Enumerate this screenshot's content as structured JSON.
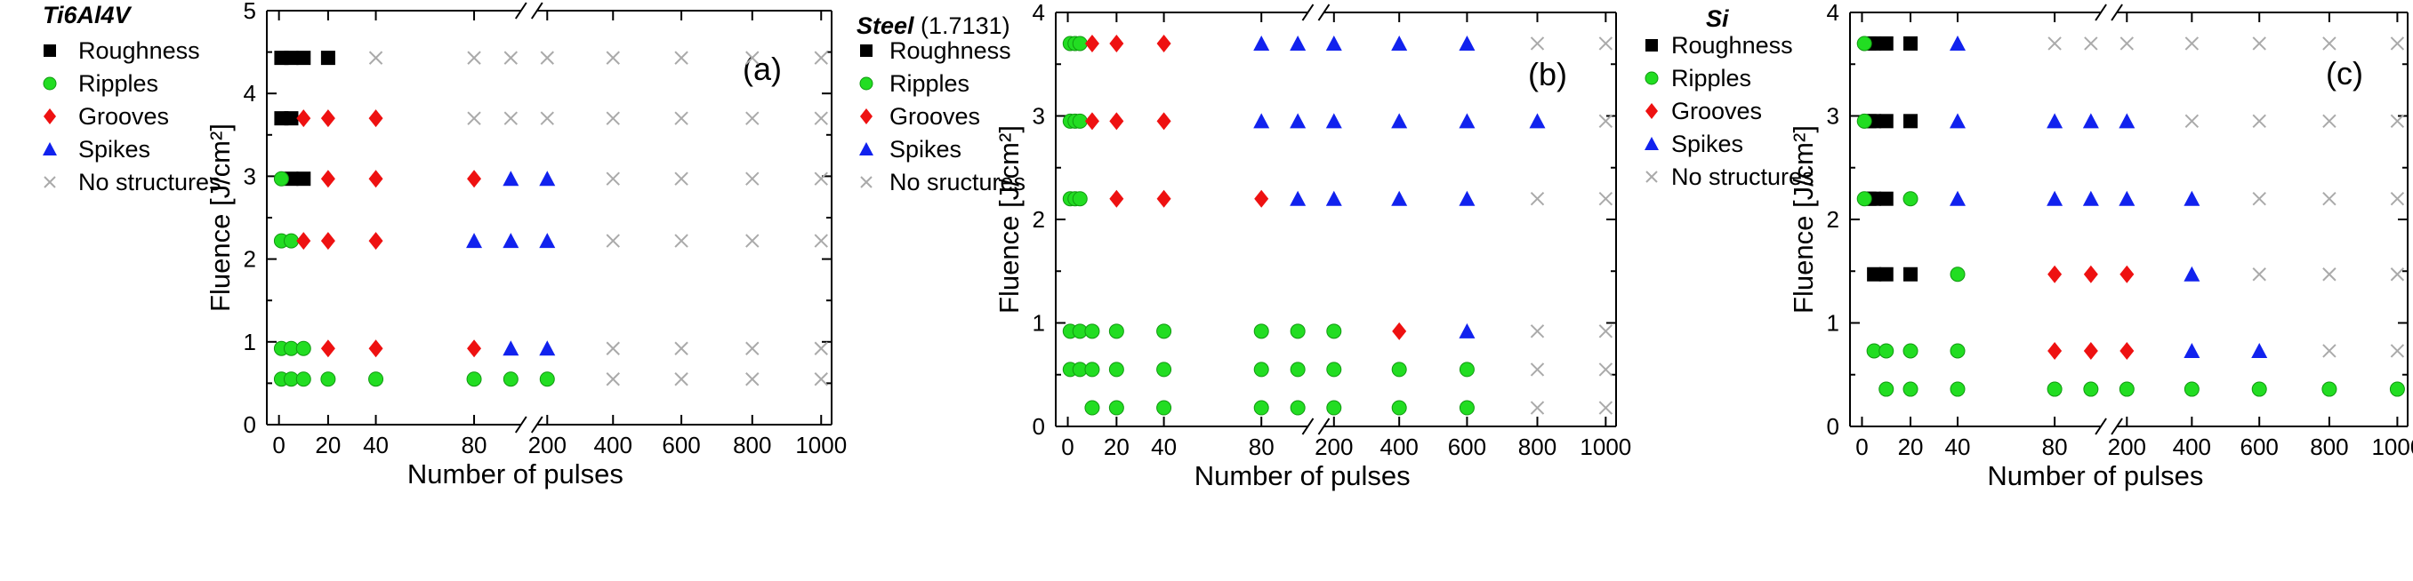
{
  "chart_data": [
    {
      "type": "scatter",
      "panel_tag": "(a)",
      "title": "Ti6Al4V",
      "title_suffix": "",
      "xlabel": "Number of pulses",
      "ylabel": "Fluence [J/cm²]",
      "ylim": [
        0,
        5
      ],
      "yticks": [
        "0",
        "1",
        "2",
        "3",
        "4",
        "5"
      ],
      "xticks": [
        "0",
        "20",
        "40",
        "80",
        "200",
        "400",
        "600",
        "800",
        "1000"
      ],
      "x_break": "between 80 and 200",
      "legend_placement": "top-left",
      "series": [
        {
          "name": "Roughness",
          "marker": "square",
          "color": "#000000",
          "points": [
            [
              1,
              4.43
            ],
            [
              5,
              4.43
            ],
            [
              10,
              4.43
            ],
            [
              20,
              4.43
            ],
            [
              1,
              3.7
            ],
            [
              5,
              3.7
            ],
            [
              10,
              2.97
            ],
            [
              5,
              2.97
            ]
          ]
        },
        {
          "name": "Ripples",
          "marker": "circle",
          "color": "#22dd22",
          "points": [
            [
              1,
              2.97
            ],
            [
              1,
              2.22
            ],
            [
              5,
              2.22
            ],
            [
              1,
              0.92
            ],
            [
              5,
              0.92
            ],
            [
              10,
              0.92
            ],
            [
              1,
              0.55
            ],
            [
              5,
              0.55
            ],
            [
              10,
              0.55
            ],
            [
              20,
              0.55
            ],
            [
              40,
              0.55
            ],
            [
              80,
              0.55
            ],
            [
              100,
              0.55
            ],
            [
              200,
              0.55
            ]
          ]
        },
        {
          "name": "Grooves",
          "marker": "diamond",
          "color": "#ee1111",
          "points": [
            [
              10,
              3.7
            ],
            [
              20,
              3.7
            ],
            [
              40,
              3.7
            ],
            [
              20,
              2.97
            ],
            [
              40,
              2.97
            ],
            [
              80,
              2.97
            ],
            [
              10,
              2.22
            ],
            [
              20,
              2.22
            ],
            [
              40,
              2.22
            ],
            [
              20,
              0.92
            ],
            [
              40,
              0.92
            ],
            [
              80,
              0.92
            ]
          ]
        },
        {
          "name": "Spikes",
          "marker": "triangle",
          "color": "#1122ee",
          "points": [
            [
              100,
              2.97
            ],
            [
              200,
              2.97
            ],
            [
              80,
              2.22
            ],
            [
              100,
              2.22
            ],
            [
              200,
              2.22
            ],
            [
              100,
              0.92
            ],
            [
              200,
              0.92
            ]
          ]
        },
        {
          "name": "No structures",
          "marker": "cross",
          "color": "#aaaaaa",
          "points": [
            [
              40,
              4.43
            ],
            [
              80,
              4.43
            ],
            [
              100,
              4.43
            ],
            [
              200,
              4.43
            ],
            [
              400,
              4.43
            ],
            [
              600,
              4.43
            ],
            [
              800,
              4.43
            ],
            [
              1000,
              4.43
            ],
            [
              80,
              3.7
            ],
            [
              100,
              3.7
            ],
            [
              200,
              3.7
            ],
            [
              400,
              3.7
            ],
            [
              600,
              3.7
            ],
            [
              800,
              3.7
            ],
            [
              1000,
              3.7
            ],
            [
              400,
              2.97
            ],
            [
              600,
              2.97
            ],
            [
              800,
              2.97
            ],
            [
              1000,
              2.97
            ],
            [
              400,
              2.22
            ],
            [
              600,
              2.22
            ],
            [
              800,
              2.22
            ],
            [
              1000,
              2.22
            ],
            [
              400,
              0.92
            ],
            [
              600,
              0.92
            ],
            [
              800,
              0.92
            ],
            [
              1000,
              0.92
            ],
            [
              400,
              0.55
            ],
            [
              600,
              0.55
            ],
            [
              800,
              0.55
            ],
            [
              1000,
              0.55
            ]
          ]
        }
      ]
    },
    {
      "type": "scatter",
      "panel_tag": "(b)",
      "title": "Steel",
      "title_suffix": " (1.7131)",
      "xlabel": "Number of pulses",
      "ylabel": "Fluence [J/cm²]",
      "ylim": [
        0,
        4
      ],
      "yticks": [
        "0",
        "1",
        "2",
        "3",
        "4"
      ],
      "xticks": [
        "0",
        "20",
        "40",
        "80",
        "200",
        "400",
        "600",
        "800",
        "1000"
      ],
      "x_break": "between 80 and 200",
      "legend_placement": "top-left",
      "series": [
        {
          "name": "Roughness",
          "marker": "square",
          "color": "#000000",
          "points": []
        },
        {
          "name": "Ripples",
          "marker": "circle",
          "color": "#22dd22",
          "points": [
            [
              1,
              3.7
            ],
            [
              3,
              3.7
            ],
            [
              5,
              3.7
            ],
            [
              1,
              2.95
            ],
            [
              3,
              2.95
            ],
            [
              5,
              2.95
            ],
            [
              1,
              2.2
            ],
            [
              3,
              2.2
            ],
            [
              5,
              2.2
            ],
            [
              1,
              0.92
            ],
            [
              5,
              0.92
            ],
            [
              10,
              0.92
            ],
            [
              20,
              0.92
            ],
            [
              40,
              0.92
            ],
            [
              80,
              0.92
            ],
            [
              100,
              0.92
            ],
            [
              200,
              0.92
            ],
            [
              1,
              0.55
            ],
            [
              5,
              0.55
            ],
            [
              10,
              0.55
            ],
            [
              20,
              0.55
            ],
            [
              40,
              0.55
            ],
            [
              80,
              0.55
            ],
            [
              100,
              0.55
            ],
            [
              200,
              0.55
            ],
            [
              400,
              0.55
            ],
            [
              600,
              0.55
            ],
            [
              10,
              0.18
            ],
            [
              20,
              0.18
            ],
            [
              40,
              0.18
            ],
            [
              80,
              0.18
            ],
            [
              100,
              0.18
            ],
            [
              200,
              0.18
            ],
            [
              400,
              0.18
            ],
            [
              600,
              0.18
            ]
          ]
        },
        {
          "name": "Grooves",
          "marker": "diamond",
          "color": "#ee1111",
          "points": [
            [
              10,
              3.7
            ],
            [
              20,
              3.7
            ],
            [
              40,
              3.7
            ],
            [
              10,
              2.95
            ],
            [
              20,
              2.95
            ],
            [
              40,
              2.95
            ],
            [
              20,
              2.2
            ],
            [
              40,
              2.2
            ],
            [
              80,
              2.2
            ],
            [
              400,
              0.92
            ]
          ]
        },
        {
          "name": "Spikes",
          "marker": "triangle",
          "color": "#1122ee",
          "points": [
            [
              80,
              3.7
            ],
            [
              100,
              3.7
            ],
            [
              200,
              3.7
            ],
            [
              400,
              3.7
            ],
            [
              600,
              3.7
            ],
            [
              80,
              2.95
            ],
            [
              100,
              2.95
            ],
            [
              200,
              2.95
            ],
            [
              400,
              2.95
            ],
            [
              600,
              2.95
            ],
            [
              800,
              2.95
            ],
            [
              100,
              2.2
            ],
            [
              200,
              2.2
            ],
            [
              400,
              2.2
            ],
            [
              600,
              2.2
            ],
            [
              600,
              0.92
            ]
          ]
        },
        {
          "name": "No sructures",
          "marker": "cross",
          "color": "#aaaaaa",
          "points": [
            [
              800,
              3.7
            ],
            [
              1000,
              3.7
            ],
            [
              1000,
              2.95
            ],
            [
              800,
              2.2
            ],
            [
              1000,
              2.2
            ],
            [
              800,
              0.92
            ],
            [
              1000,
              0.92
            ],
            [
              800,
              0.55
            ],
            [
              1000,
              0.55
            ],
            [
              800,
              0.18
            ],
            [
              1000,
              0.18
            ]
          ]
        }
      ]
    },
    {
      "type": "scatter",
      "panel_tag": "(c)",
      "title": "Si",
      "title_suffix": "",
      "xlabel": "Number of pulses",
      "ylabel": "Fluence [J/cm²]",
      "ylim": [
        0,
        4
      ],
      "yticks": [
        "0",
        "1",
        "2",
        "3",
        "4"
      ],
      "xticks": [
        "0",
        "20",
        "40",
        "80",
        "200",
        "400",
        "600",
        "800",
        "1000"
      ],
      "x_break": "between 80 and 200",
      "legend_placement": "top-left",
      "series": [
        {
          "name": "Roughness",
          "marker": "square",
          "color": "#000000",
          "points": [
            [
              3,
              3.7
            ],
            [
              5,
              3.7
            ],
            [
              10,
              3.7
            ],
            [
              20,
              3.7
            ],
            [
              3,
              2.95
            ],
            [
              5,
              2.95
            ],
            [
              10,
              2.95
            ],
            [
              20,
              2.95
            ],
            [
              3,
              2.2
            ],
            [
              5,
              2.2
            ],
            [
              10,
              2.2
            ],
            [
              5,
              1.47
            ],
            [
              10,
              1.47
            ],
            [
              20,
              1.47
            ]
          ]
        },
        {
          "name": "Ripples",
          "marker": "circle",
          "color": "#22dd22",
          "points": [
            [
              1,
              3.7
            ],
            [
              1,
              2.95
            ],
            [
              1,
              2.2
            ],
            [
              20,
              2.2
            ],
            [
              40,
              1.47
            ],
            [
              5,
              0.73
            ],
            [
              10,
              0.73
            ],
            [
              20,
              0.73
            ],
            [
              40,
              0.73
            ],
            [
              10,
              0.36
            ],
            [
              20,
              0.36
            ],
            [
              40,
              0.36
            ],
            [
              80,
              0.36
            ],
            [
              100,
              0.36
            ],
            [
              200,
              0.36
            ],
            [
              400,
              0.36
            ],
            [
              600,
              0.36
            ],
            [
              800,
              0.36
            ],
            [
              1000,
              0.36
            ]
          ]
        },
        {
          "name": "Grooves",
          "marker": "diamond",
          "color": "#ee1111",
          "points": [
            [
              80,
              1.47
            ],
            [
              100,
              1.47
            ],
            [
              200,
              1.47
            ],
            [
              80,
              0.73
            ],
            [
              100,
              0.73
            ],
            [
              200,
              0.73
            ]
          ]
        },
        {
          "name": "Spikes",
          "marker": "triangle",
          "color": "#1122ee",
          "points": [
            [
              40,
              3.7
            ],
            [
              40,
              2.95
            ],
            [
              80,
              2.95
            ],
            [
              100,
              2.95
            ],
            [
              200,
              2.95
            ],
            [
              40,
              2.2
            ],
            [
              80,
              2.2
            ],
            [
              100,
              2.2
            ],
            [
              200,
              2.2
            ],
            [
              400,
              2.2
            ],
            [
              400,
              1.47
            ],
            [
              400,
              0.73
            ],
            [
              600,
              0.73
            ]
          ]
        },
        {
          "name": "No structures",
          "marker": "cross",
          "color": "#aaaaaa",
          "points": [
            [
              80,
              3.7
            ],
            [
              100,
              3.7
            ],
            [
              200,
              3.7
            ],
            [
              400,
              3.7
            ],
            [
              600,
              3.7
            ],
            [
              800,
              3.7
            ],
            [
              1000,
              3.7
            ],
            [
              400,
              2.95
            ],
            [
              600,
              2.95
            ],
            [
              800,
              2.95
            ],
            [
              1000,
              2.95
            ],
            [
              600,
              2.2
            ],
            [
              800,
              2.2
            ],
            [
              1000,
              2.2
            ],
            [
              600,
              1.47
            ],
            [
              800,
              1.47
            ],
            [
              1000,
              1.47
            ],
            [
              800,
              0.73
            ],
            [
              1000,
              0.73
            ]
          ]
        }
      ]
    }
  ]
}
